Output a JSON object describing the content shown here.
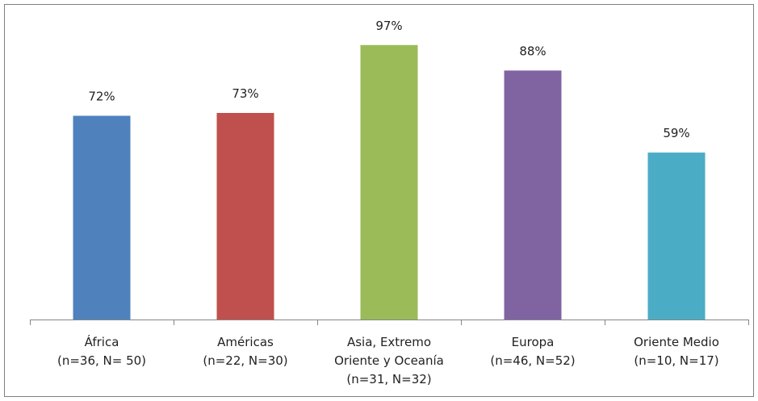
{
  "chart_data": {
    "type": "bar",
    "categories": [
      [
        "África",
        "(n=36, N= 50)"
      ],
      [
        "Américas",
        "(n=22, N=30)"
      ],
      [
        "Asia, Extremo",
        "Oriente y Oceanía",
        "(n=31, N=32)"
      ],
      [
        "Europa",
        "(n=46, N=52)"
      ],
      [
        "Oriente Medio",
        "(n=10, N=17)"
      ]
    ],
    "values": [
      72,
      73,
      97,
      88,
      59
    ],
    "data_labels": [
      "72%",
      "73%",
      "97%",
      "88%",
      "59%"
    ],
    "colors": [
      "#4f81bd",
      "#c0504d",
      "#9bbb59",
      "#8064a2",
      "#4bacc6"
    ],
    "ylim": [
      0,
      100
    ],
    "grid": false,
    "legend": "none",
    "title": "",
    "xlabel": "",
    "ylabel": ""
  }
}
